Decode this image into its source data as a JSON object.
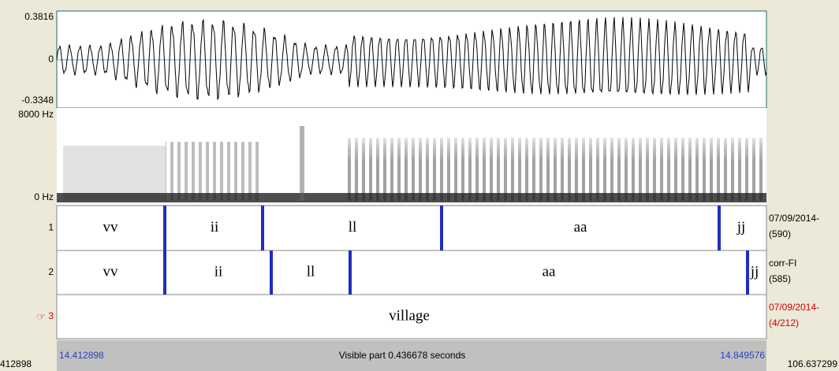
{
  "waveform": {
    "max_label": "0.3816",
    "zero_label": "0",
    "min_label": "-0.3348"
  },
  "spectrogram": {
    "top_label": "8000 Hz",
    "bottom_label": "0 Hz"
  },
  "tiers": [
    {
      "number": "1",
      "intervals": [
        "vv",
        "ii",
        "ll",
        "aa",
        "jj"
      ],
      "info": [
        "07/09/2014-",
        "(590)"
      ]
    },
    {
      "number": "2",
      "intervals": [
        "vv",
        "ii",
        "ll",
        "aa",
        "jj"
      ],
      "info": [
        "corr-FI",
        "(585)"
      ]
    },
    {
      "number": "3",
      "intervals": [
        "village"
      ],
      "info": [
        "07/09/2014-",
        "(4/212)"
      ]
    }
  ],
  "footer": {
    "left_total": "412898",
    "start": "14.412898",
    "visible": "Visible part 0.436678 seconds",
    "end": "14.849576",
    "right_total": "106.637299"
  }
}
